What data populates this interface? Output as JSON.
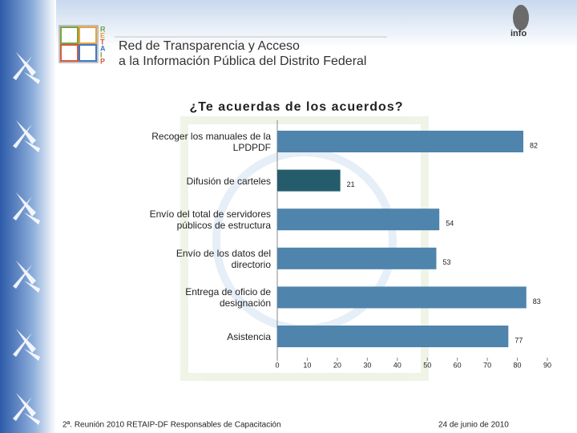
{
  "header": {
    "logo_letters": [
      "R",
      "E",
      "T",
      "A",
      "I",
      "P"
    ],
    "line1": "Red de Transparencia y Acceso",
    "line2": "a la Información Pública del Distrito Federal",
    "right_logo": "info"
  },
  "chart_data": {
    "type": "bar",
    "orientation": "horizontal",
    "title": "¿Te acuerdas de los acuerdos?",
    "categories": [
      "Recoger los manuales de la\nLPDPDF",
      "Difusión de carteles",
      "Envío del total de servidores\npúblicos de estructura",
      "Envío de los datos del\ndirectorio",
      "Entrega de oficio de\ndesignación",
      "Asistencia"
    ],
    "values": [
      82,
      21,
      54,
      53,
      83,
      77
    ],
    "colors": [
      "#4f84ac",
      "#245c6c",
      "#4f84ac",
      "#4f84ac",
      "#4f84ac",
      "#4f84ac"
    ],
    "xlim": [
      0,
      90
    ],
    "xticks": [
      0,
      10,
      20,
      30,
      40,
      50,
      60,
      70,
      80,
      90
    ],
    "grid": false
  },
  "footer": {
    "left": "2ª. Reunión 2010 RETAIP-DF Responsables de Capacitación",
    "right": "24 de junio de 2010"
  }
}
